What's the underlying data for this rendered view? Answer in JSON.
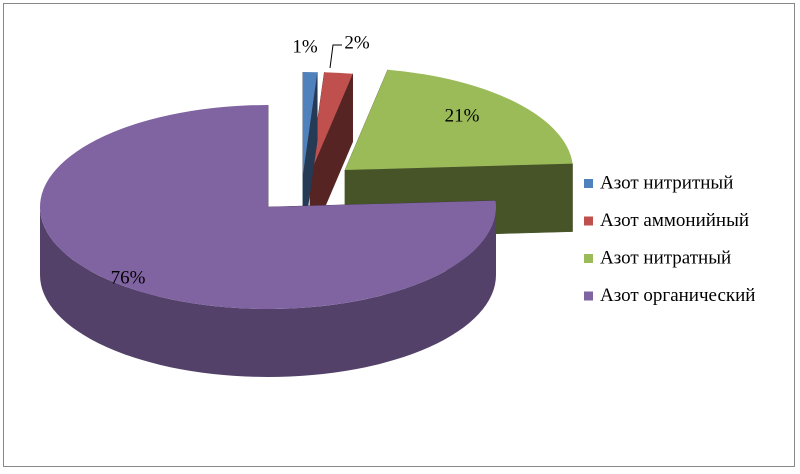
{
  "chart_data": {
    "type": "pie",
    "categories": [
      "Азот нитритный",
      "Азот аммонийный",
      "Азот нитратный",
      "Азот органический"
    ],
    "values": [
      1,
      2,
      21,
      76
    ],
    "value_labels": [
      "1%",
      "2%",
      "21%",
      "76%"
    ],
    "colors": [
      "#4f81bd",
      "#c0504d",
      "#9bbb59",
      "#8064a2"
    ],
    "legend": "right"
  }
}
